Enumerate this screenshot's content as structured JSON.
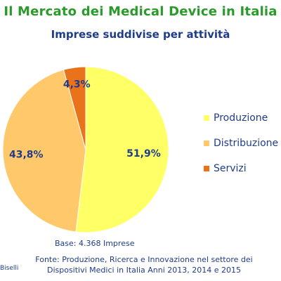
{
  "header": {
    "title": "Il Mercato dei Medical Device in Italia",
    "subtitle": "Imprese suddivise per attività"
  },
  "chart_data": {
    "type": "pie",
    "title": "Imprese suddivise per attività",
    "categories": [
      "Produzione",
      "Distribuzione",
      "Servizi"
    ],
    "values": [
      51.9,
      43.8,
      4.3
    ],
    "data_labels": [
      "51,9%",
      "43,8%",
      "4,3%"
    ],
    "colors": [
      "#ffff66",
      "#ffc96b",
      "#e8731a"
    ],
    "legend_placement": "right"
  },
  "footer": {
    "base": "Base: 4.368 Imprese",
    "source_line1": "Fonte: Produzione, Ricerca e Innovazione nel settore dei",
    "source_line2": "Dispositivi Medici in Italia  Anni 2013, 2014 e 2015",
    "author": "Biselli"
  }
}
